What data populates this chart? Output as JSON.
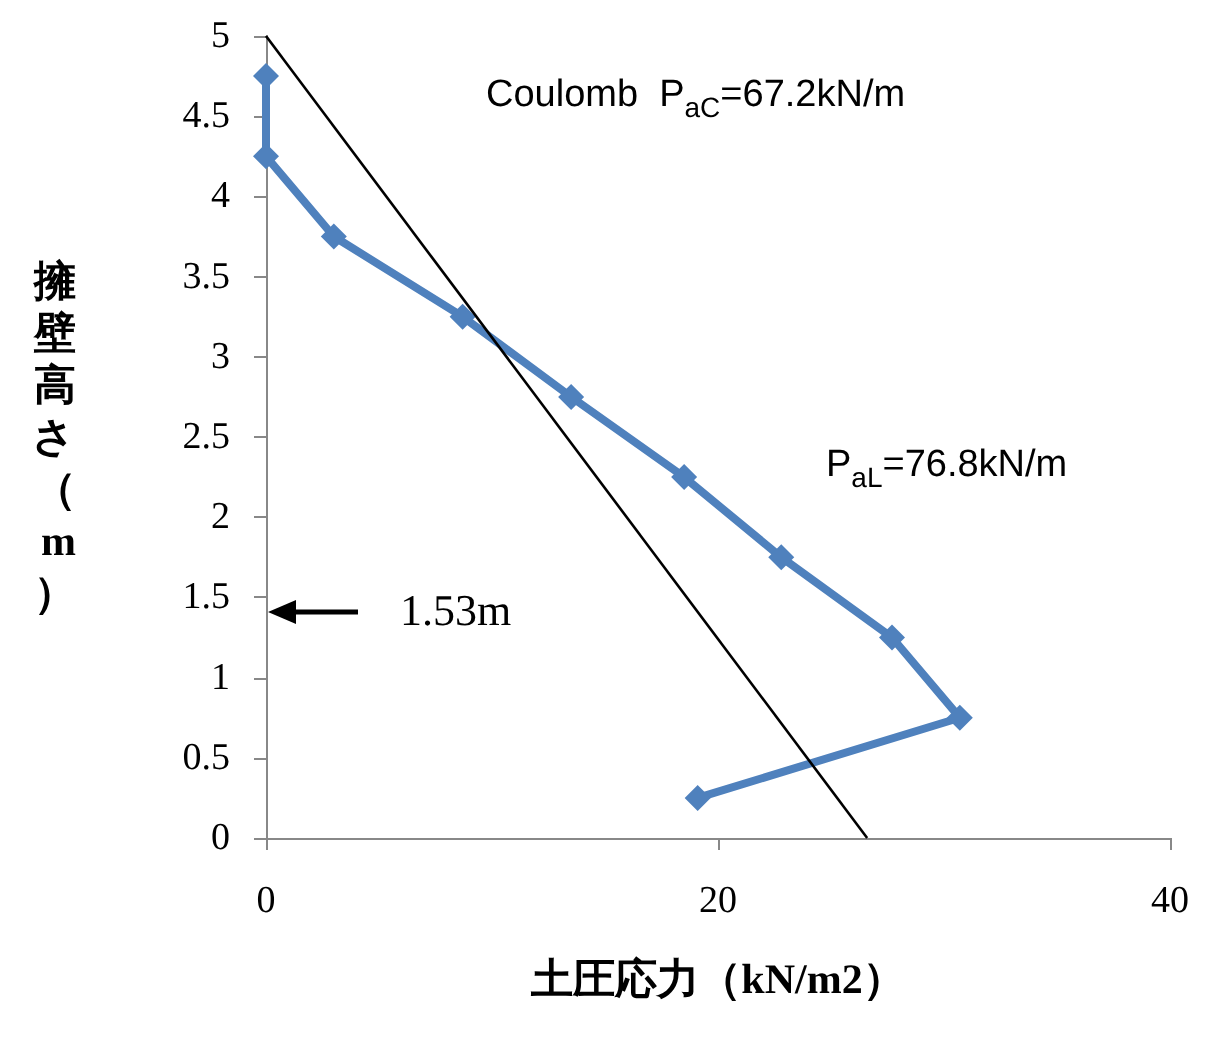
{
  "chart_data": {
    "type": "line",
    "xlabel": "土圧応力（kN/m2）",
    "ylabel": "擁壁高さ（m）",
    "xlim": [
      0,
      40
    ],
    "xticks": [
      0,
      20,
      40
    ],
    "ylim": [
      0,
      5
    ],
    "yticks": [
      0,
      0.5,
      1,
      1.5,
      2,
      2.5,
      3,
      3.5,
      4,
      4.5,
      5
    ],
    "grid": false,
    "marker": "diamond",
    "line_style": "solid",
    "series": [
      {
        "color": "#4f81bd",
        "x": [
          0,
          0,
          3.0,
          8.7,
          13.5,
          18.5,
          22.8,
          27.7,
          30.7,
          19.1
        ],
        "values": [
          4.75,
          4.25,
          3.75,
          3.25,
          2.75,
          2.25,
          1.75,
          1.25,
          0.75,
          0.25
        ]
      },
      {
        "color": "#000000",
        "marker": "none",
        "x": [
          0,
          26.6
        ],
        "values": [
          5,
          0
        ]
      }
    ],
    "annotations": [
      "Coulomb  P$_{aC}$=67.2kN/m",
      "P$_{aL}$=76.8kN/m",
      "1.53m"
    ]
  }
}
